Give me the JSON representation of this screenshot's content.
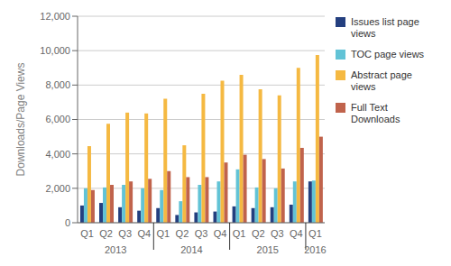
{
  "chart_data": {
    "type": "bar",
    "ylabel": "Downloads/Page Views",
    "categories": [
      "Q1",
      "Q2",
      "Q3",
      "Q4",
      "Q1",
      "Q2",
      "Q3",
      "Q4",
      "Q1",
      "Q2",
      "Q3",
      "Q4",
      "Q1"
    ],
    "category_groups": [
      {
        "label": "2013",
        "size": 4
      },
      {
        "label": "2014",
        "size": 4
      },
      {
        "label": "2015",
        "size": 4
      },
      {
        "label": "2016",
        "size": 1
      }
    ],
    "series": [
      {
        "name": "Issues list page\nviews",
        "color": "#243f7f",
        "values": [
          1000,
          1150,
          900,
          700,
          850,
          450,
          600,
          650,
          950,
          850,
          900,
          1050,
          2400
        ]
      },
      {
        "name": "TOC page views",
        "color": "#62c3d6",
        "values": [
          2000,
          2050,
          2200,
          2000,
          1900,
          1250,
          2200,
          2400,
          3100,
          2050,
          2000,
          2400,
          2450
        ]
      },
      {
        "name": "Abstract page\nviews",
        "color": "#f5b942",
        "values": [
          4450,
          5750,
          6400,
          6350,
          7200,
          4500,
          7500,
          8250,
          8600,
          7750,
          7400,
          9000,
          9750
        ]
      },
      {
        "name": "Full Text\nDownloads",
        "color": "#c0634c",
        "values": [
          1900,
          2200,
          2400,
          2550,
          3000,
          2650,
          2650,
          3500,
          3950,
          3700,
          3150,
          4350,
          5000
        ]
      }
    ],
    "ylim": [
      0,
      12000
    ],
    "yticks": [
      0,
      {
        "value": 2000,
        "label": "2,000"
      },
      {
        "value": 4000,
        "label": "4,000"
      },
      {
        "value": 6000,
        "label": "6,000"
      },
      {
        "value": 8000,
        "label": "8,000"
      },
      {
        "value": 10000,
        "label": "10,000"
      },
      {
        "value": 12000,
        "label": "12,000"
      }
    ],
    "grid": true,
    "legend": "right"
  }
}
